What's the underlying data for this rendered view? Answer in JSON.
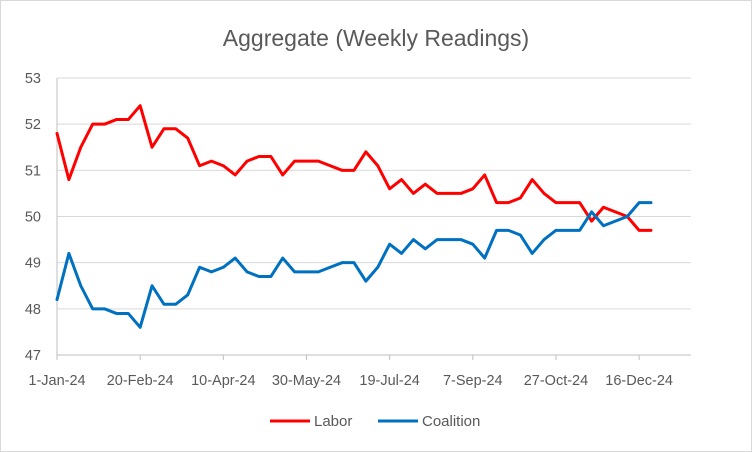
{
  "chart_data": {
    "type": "line",
    "title": "Aggregate (Weekly Readings)",
    "xlabel": "",
    "ylabel": "",
    "ylim": [
      47,
      53
    ],
    "yticks": [
      47,
      48,
      49,
      50,
      51,
      52,
      53
    ],
    "x_tick_labels": [
      "1-Jan-24",
      "20-Feb-24",
      "10-Apr-24",
      "30-May-24",
      "19-Jul-24",
      "7-Sep-24",
      "27-Oct-24",
      "16-Dec-24"
    ],
    "x_tick_index_step": 7,
    "grid": "horizontal",
    "legend_position": "bottom",
    "series": [
      {
        "name": "Labor",
        "color": "#ff0000",
        "values": [
          51.8,
          50.8,
          51.5,
          52.0,
          52.0,
          52.1,
          52.1,
          52.4,
          51.5,
          51.9,
          51.9,
          51.7,
          51.1,
          51.2,
          51.1,
          50.9,
          51.2,
          51.3,
          51.3,
          50.9,
          51.2,
          51.2,
          51.2,
          51.1,
          51.0,
          51.0,
          51.4,
          51.1,
          50.6,
          50.8,
          50.5,
          50.7,
          50.5,
          50.5,
          50.5,
          50.6,
          50.9,
          50.3,
          50.3,
          50.4,
          50.8,
          50.5,
          50.3,
          50.3,
          50.3,
          49.9,
          50.2,
          50.1,
          50.0,
          49.7,
          49.7
        ]
      },
      {
        "name": "Coalition",
        "color": "#0070c0",
        "values": [
          48.2,
          49.2,
          48.5,
          48.0,
          48.0,
          47.9,
          47.9,
          47.6,
          48.5,
          48.1,
          48.1,
          48.3,
          48.9,
          48.8,
          48.9,
          49.1,
          48.8,
          48.7,
          48.7,
          49.1,
          48.8,
          48.8,
          48.8,
          48.9,
          49.0,
          49.0,
          48.6,
          48.9,
          49.4,
          49.2,
          49.5,
          49.3,
          49.5,
          49.5,
          49.5,
          49.4,
          49.1,
          49.7,
          49.7,
          49.6,
          49.2,
          49.5,
          49.7,
          49.7,
          49.7,
          50.1,
          49.8,
          49.9,
          50.0,
          50.3,
          50.3
        ]
      }
    ]
  }
}
